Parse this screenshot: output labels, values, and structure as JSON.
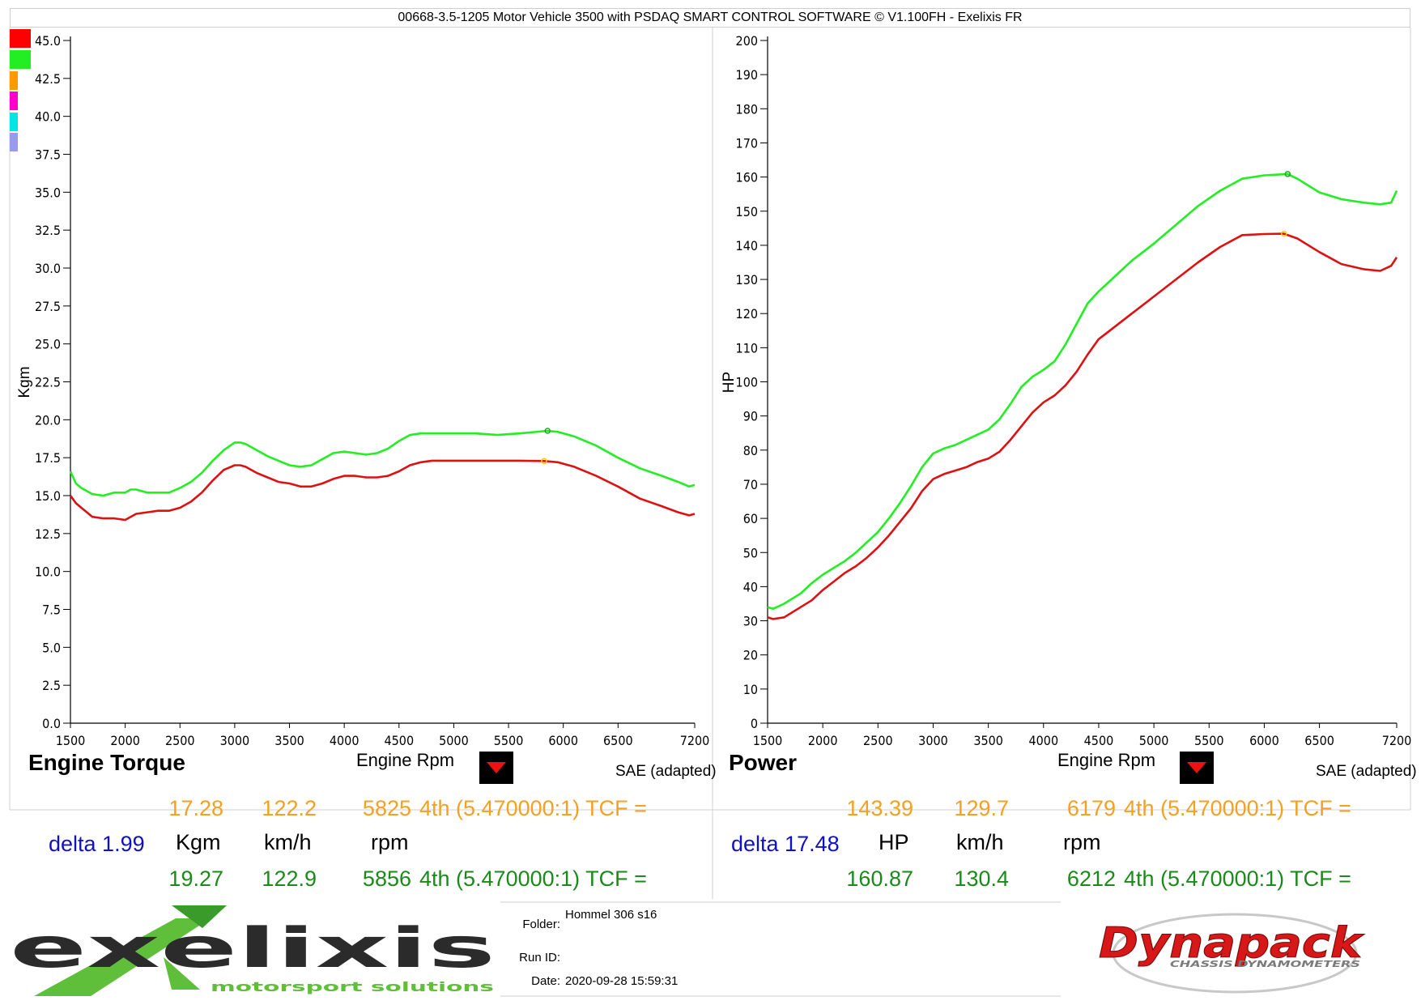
{
  "header": {
    "title": "00668-3.5-1205 Motor Vehicle 3500 with PSDAQ SMART CONTROL SOFTWARE © V1.100FH - Exelixis FR"
  },
  "legend_swatches": [
    {
      "color": "#ff0000"
    },
    {
      "color": "#22ee22"
    },
    {
      "color": "#ff9900"
    },
    {
      "color": "#ff00cc"
    },
    {
      "color": "#00e5e5"
    },
    {
      "color": "#9999ee"
    }
  ],
  "torque_panel": {
    "name": "Engine Torque",
    "x_axis_name": "Engine Rpm",
    "correction": "SAE (adapted)",
    "cursor_run1": {
      "value": "17.28",
      "speed": "122.2",
      "rpm": "5825",
      "gear": "4th (5.470000:1) TCF ="
    },
    "units": {
      "delta": "delta 1.99",
      "value": "Kgm",
      "speed": "km/h",
      "rpm": "rpm"
    },
    "cursor_run2": {
      "value": "19.27",
      "speed": "122.9",
      "rpm": "5856",
      "gear": "4th (5.470000:1) TCF ="
    }
  },
  "power_panel": {
    "name": "Power",
    "x_axis_name": "Engine Rpm",
    "correction": "SAE (adapted)",
    "cursor_run1": {
      "value": "143.39",
      "speed": "129.7",
      "rpm": "6179",
      "gear": "4th (5.470000:1) TCF ="
    },
    "units": {
      "delta": "delta 17.48",
      "value": "HP",
      "speed": "km/h",
      "rpm": "rpm"
    },
    "cursor_run2": {
      "value": "160.87",
      "speed": "130.4",
      "rpm": "6212",
      "gear": "4th (5.470000:1) TCF ="
    }
  },
  "footer": {
    "logo_left": {
      "word": "exelixis",
      "tagline": "motorsport solutions"
    },
    "folder_label": "Folder:",
    "folder_value": "Hommel 306 s16",
    "runid_label": "Run ID:",
    "runid_value": "",
    "date_label": "Date:",
    "date_value": "2020-09-28 15:59:31",
    "logo_right": {
      "word": "Dynapack",
      "tagline": "CHASSIS DYNAMOMETERS"
    }
  },
  "colors": {
    "run1": "#dd1111",
    "run2": "#22ee22",
    "cursor1": "#f5a020",
    "cursor2": "#1a8a1a",
    "delta": "#1010c8"
  },
  "chart_data": [
    {
      "type": "line",
      "title": "Engine Torque",
      "xlabel": "Engine Rpm",
      "ylabel": "Kgm",
      "xlim": [
        1500,
        7200
      ],
      "ylim": [
        0,
        45
      ],
      "x_ticks": [
        1500,
        2000,
        2500,
        3000,
        3500,
        4000,
        4500,
        5000,
        5500,
        6000,
        6500,
        7200
      ],
      "y_ticks": [
        "0.0",
        "2.5",
        "5.0",
        "7.5",
        "10.0",
        "12.5",
        "15.0",
        "17.5",
        "20.0",
        "22.5",
        "25.0",
        "27.5",
        "30.0",
        "32.5",
        "35.0",
        "37.5",
        "40.0",
        "42.5",
        "45.0"
      ],
      "series": [
        {
          "color": "#dd1111",
          "x": [
            1500,
            1550,
            1600,
            1700,
            1800,
            1900,
            2000,
            2100,
            2200,
            2300,
            2400,
            2500,
            2600,
            2700,
            2800,
            2900,
            3000,
            3050,
            3100,
            3200,
            3300,
            3400,
            3500,
            3600,
            3700,
            3800,
            3900,
            4000,
            4100,
            4200,
            4300,
            4400,
            4500,
            4600,
            4700,
            4800,
            4900,
            5000,
            5200,
            5400,
            5600,
            5825,
            5950,
            6100,
            6300,
            6500,
            6700,
            6900,
            7050,
            7150,
            7200
          ],
          "y": [
            15.0,
            14.5,
            14.2,
            13.6,
            13.5,
            13.5,
            13.4,
            13.8,
            13.9,
            14.0,
            14.0,
            14.2,
            14.6,
            15.2,
            16.0,
            16.7,
            17.0,
            17.0,
            16.9,
            16.5,
            16.2,
            15.9,
            15.8,
            15.6,
            15.6,
            15.8,
            16.1,
            16.3,
            16.3,
            16.2,
            16.2,
            16.3,
            16.6,
            17.0,
            17.2,
            17.3,
            17.3,
            17.3,
            17.3,
            17.3,
            17.3,
            17.28,
            17.2,
            16.9,
            16.3,
            15.6,
            14.8,
            14.3,
            13.9,
            13.7,
            13.8
          ]
        },
        {
          "color": "#22ee22",
          "x": [
            1500,
            1550,
            1600,
            1700,
            1800,
            1900,
            2000,
            2050,
            2100,
            2200,
            2300,
            2400,
            2500,
            2600,
            2700,
            2800,
            2900,
            3000,
            3050,
            3100,
            3200,
            3300,
            3400,
            3500,
            3600,
            3700,
            3800,
            3900,
            4000,
            4100,
            4200,
            4300,
            4400,
            4500,
            4600,
            4700,
            4800,
            4900,
            5000,
            5200,
            5400,
            5600,
            5856,
            5950,
            6100,
            6300,
            6500,
            6700,
            6900,
            7050,
            7150,
            7200
          ],
          "y": [
            16.6,
            15.8,
            15.5,
            15.1,
            15.0,
            15.2,
            15.2,
            15.4,
            15.4,
            15.2,
            15.2,
            15.2,
            15.5,
            15.9,
            16.5,
            17.3,
            18.0,
            18.5,
            18.5,
            18.4,
            18.0,
            17.6,
            17.3,
            17.0,
            16.9,
            17.0,
            17.4,
            17.8,
            17.9,
            17.8,
            17.7,
            17.8,
            18.1,
            18.6,
            19.0,
            19.1,
            19.1,
            19.1,
            19.1,
            19.1,
            19.0,
            19.1,
            19.27,
            19.2,
            18.9,
            18.3,
            17.5,
            16.8,
            16.3,
            15.9,
            15.6,
            15.7
          ]
        }
      ]
    },
    {
      "type": "line",
      "title": "Power",
      "xlabel": "Engine Rpm",
      "ylabel": "HP",
      "xlim": [
        1500,
        7200
      ],
      "ylim": [
        0,
        200
      ],
      "x_ticks": [
        1500,
        2000,
        2500,
        3000,
        3500,
        4000,
        4500,
        5000,
        5500,
        6000,
        6500,
        7200
      ],
      "y_ticks": [
        "0",
        "10",
        "20",
        "30",
        "40",
        "50",
        "60",
        "70",
        "80",
        "90",
        "100",
        "110",
        "120",
        "130",
        "140",
        "150",
        "160",
        "170",
        "180",
        "190",
        "200"
      ],
      "series": [
        {
          "color": "#dd1111",
          "x": [
            1500,
            1550,
            1650,
            1800,
            1900,
            2000,
            2100,
            2200,
            2300,
            2400,
            2500,
            2600,
            2700,
            2800,
            2900,
            3000,
            3100,
            3200,
            3300,
            3400,
            3500,
            3600,
            3700,
            3800,
            3900,
            4000,
            4100,
            4200,
            4300,
            4400,
            4500,
            4600,
            4700,
            4800,
            4900,
            5000,
            5200,
            5400,
            5600,
            5800,
            6000,
            6179,
            6300,
            6500,
            6700,
            6900,
            7050,
            7150,
            7200
          ],
          "y": [
            31,
            30.5,
            31,
            34,
            36,
            39,
            41.5,
            44,
            46,
            48.5,
            51.5,
            55,
            59,
            63,
            68,
            71.5,
            73,
            74,
            75,
            76.5,
            77.5,
            79.5,
            83,
            87,
            91,
            94,
            96,
            99,
            103,
            108,
            112.5,
            115,
            117.5,
            120,
            122.5,
            125,
            130,
            135,
            139.5,
            143,
            143.3,
            143.39,
            142,
            138,
            134.5,
            133,
            132.5,
            134,
            136.5
          ]
        },
        {
          "color": "#22ee22",
          "x": [
            1500,
            1550,
            1650,
            1800,
            1900,
            2000,
            2100,
            2200,
            2300,
            2400,
            2500,
            2600,
            2700,
            2800,
            2900,
            3000,
            3100,
            3200,
            3300,
            3400,
            3500,
            3600,
            3700,
            3800,
            3900,
            4000,
            4100,
            4200,
            4300,
            4400,
            4500,
            4600,
            4700,
            4800,
            4900,
            5000,
            5200,
            5400,
            5600,
            5800,
            6000,
            6212,
            6300,
            6500,
            6700,
            6900,
            7050,
            7150,
            7200
          ],
          "y": [
            34,
            33.5,
            35,
            38,
            41,
            43.5,
            45.5,
            47.5,
            50,
            53,
            56,
            60,
            64.5,
            69.5,
            75,
            79,
            80.5,
            81.5,
            83,
            84.5,
            86,
            89,
            93.5,
            98.5,
            101.5,
            103.5,
            106,
            111,
            117,
            123,
            126.5,
            129.5,
            132.5,
            135.5,
            138,
            140.5,
            146,
            151.5,
            156,
            159.5,
            160.5,
            160.87,
            159.5,
            155.5,
            153.5,
            152.5,
            152,
            152.5,
            156
          ]
        }
      ]
    }
  ]
}
